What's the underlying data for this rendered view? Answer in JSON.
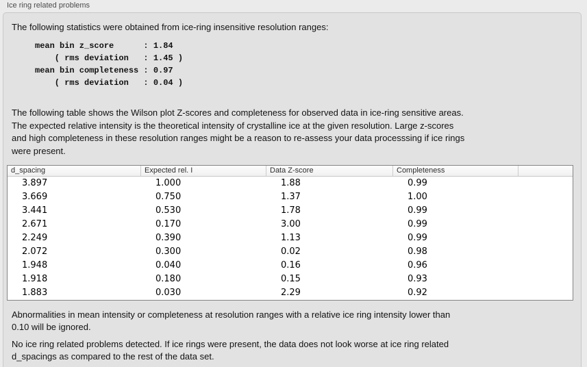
{
  "panel": {
    "title": "Ice ring related problems",
    "intro": "The following statistics were obtained from ice-ring insensitive resolution ranges:",
    "stats_block": "mean bin z_score      : 1.84\n    ( rms deviation   : 1.45 )\nmean bin completeness : 0.97\n    ( rms deviation   : 0.04 )",
    "stats": {
      "mean_bin_z_score": "1.84",
      "z_score_rms_deviation": "1.45",
      "mean_bin_completeness": "0.97",
      "completeness_rms_deviation": "0.04"
    },
    "table_description": "The following table shows the Wilson plot Z-scores and completeness for observed data in ice-ring sensitive areas.\nThe expected relative intensity is the theoretical intensity of crystalline ice at the given resolution. Large z-scores\nand high completeness in these resolution ranges might be a reason to re-assess your data processsing if ice rings\nwere present.",
    "note_ignore": "Abnormalities in mean intensity or completeness at resolution ranges with a relative ice ring intensity lower than\n0.10 will be ignored.",
    "conclusion": "No ice ring related problems detected. If ice rings were present, the data does not look worse at ice ring related\nd_spacings as compared to the rest of the data set."
  },
  "table": {
    "columns": [
      "d_spacing",
      "Expected rel. I",
      "Data Z-score",
      "Completeness"
    ],
    "rows": [
      [
        "3.897",
        "1.000",
        "1.88",
        "0.99"
      ],
      [
        "3.669",
        "0.750",
        "1.37",
        "1.00"
      ],
      [
        "3.441",
        "0.530",
        "1.78",
        "0.99"
      ],
      [
        "2.671",
        "0.170",
        "3.00",
        "0.99"
      ],
      [
        "2.249",
        "0.390",
        "1.13",
        "0.99"
      ],
      [
        "2.072",
        "0.300",
        "0.02",
        "0.98"
      ],
      [
        "1.948",
        "0.040",
        "0.16",
        "0.96"
      ],
      [
        "1.918",
        "0.180",
        "0.15",
        "0.93"
      ],
      [
        "1.883",
        "0.030",
        "2.29",
        "0.92"
      ]
    ]
  },
  "colors": {
    "page_background": "#ebebeb",
    "panel_background": "#e2e2e2",
    "panel_border": "#c8c8c8",
    "table_border": "#848484",
    "table_header_background": "#f6f6f6",
    "table_body_background": "#ffffff",
    "text": "#111111"
  }
}
